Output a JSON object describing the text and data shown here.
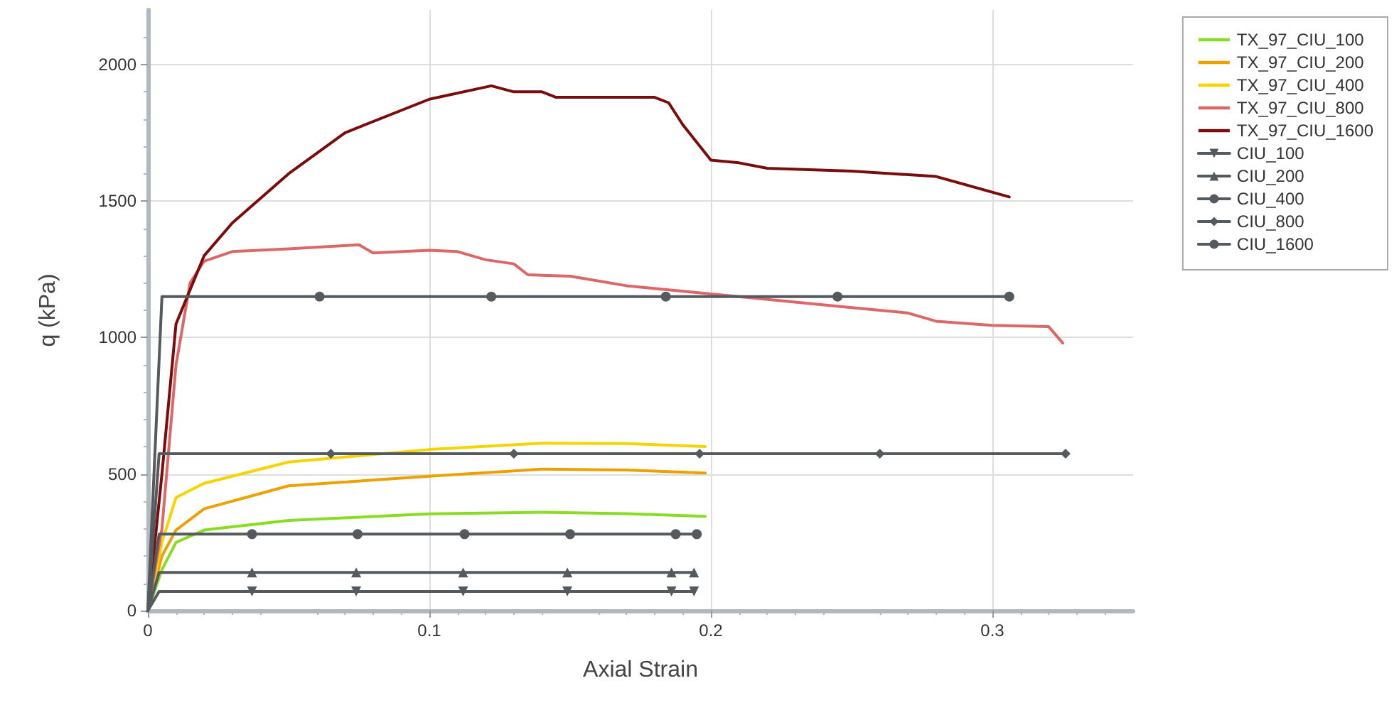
{
  "chart_data": {
    "type": "line",
    "xlabel": "Axial Strain",
    "ylabel": "q (kPa)",
    "xlim": [
      0,
      0.35
    ],
    "xticks": [
      0,
      0.1,
      0.2,
      0.3
    ],
    "ylim": [
      0,
      2200
    ],
    "yticks": [
      0,
      500,
      1000,
      1500,
      2000
    ],
    "grid": true,
    "legend": "top right",
    "line_style": "solid",
    "series": [
      {
        "name": "TX_97_CIU_100",
        "color": "#88dd22",
        "marker": "none",
        "x": [
          0,
          0.005,
          0.01,
          0.02,
          0.05,
          0.1,
          0.14,
          0.17,
          0.198
        ],
        "values": [
          0,
          150,
          250,
          295,
          330,
          354,
          360,
          355,
          345
        ]
      },
      {
        "name": "TX_97_CIU_200",
        "color": "#eea000",
        "marker": "none",
        "x": [
          0,
          0.005,
          0.01,
          0.02,
          0.05,
          0.1,
          0.14,
          0.17,
          0.198
        ],
        "values": [
          0,
          200,
          295,
          373,
          457,
          492,
          518,
          515,
          504
        ]
      },
      {
        "name": "TX_97_CIU_400",
        "color": "#f5d400",
        "marker": "none",
        "x": [
          0,
          0.005,
          0.01,
          0.02,
          0.05,
          0.1,
          0.14,
          0.17,
          0.198
        ],
        "values": [
          0,
          250,
          414,
          466,
          544,
          590,
          613,
          612,
          601
        ]
      },
      {
        "name": "TX_97_CIU_800",
        "color": "#dd6666",
        "marker": "none",
        "x": [
          0,
          0.005,
          0.01,
          0.015,
          0.02,
          0.03,
          0.05,
          0.075,
          0.08,
          0.1,
          0.11,
          0.12,
          0.13,
          0.135,
          0.15,
          0.17,
          0.2,
          0.25,
          0.27,
          0.28,
          0.3,
          0.32,
          0.325
        ],
        "values": [
          0,
          300,
          900,
          1200,
          1280,
          1315,
          1325,
          1340,
          1310,
          1320,
          1315,
          1285,
          1270,
          1230,
          1225,
          1190,
          1160,
          1110,
          1090,
          1060,
          1045,
          1040,
          980
        ]
      },
      {
        "name": "TX_97_CIU_1600",
        "color": "#7a0c0c",
        "marker": "none",
        "x": [
          0,
          0.005,
          0.01,
          0.02,
          0.03,
          0.05,
          0.07,
          0.1,
          0.122,
          0.13,
          0.14,
          0.145,
          0.18,
          0.185,
          0.19,
          0.2,
          0.21,
          0.22,
          0.25,
          0.28,
          0.306
        ],
        "values": [
          0,
          500,
          1050,
          1300,
          1420,
          1600,
          1750,
          1873,
          1922,
          1900,
          1900,
          1880,
          1880,
          1860,
          1780,
          1650,
          1640,
          1620,
          1610,
          1590,
          1515
        ]
      },
      {
        "name": "CIU_100",
        "color": "#555a5f",
        "marker": "triangle-down",
        "x": [
          0,
          0.004,
          0.037,
          0.074,
          0.112,
          0.149,
          0.186,
          0.194
        ],
        "values": [
          0,
          70,
          70,
          70,
          70,
          70,
          70,
          70
        ]
      },
      {
        "name": "CIU_200",
        "color": "#555a5f",
        "marker": "triangle",
        "x": [
          0,
          0.004,
          0.037,
          0.074,
          0.112,
          0.149,
          0.186,
          0.194
        ],
        "values": [
          0,
          140,
          140,
          140,
          140,
          140,
          140,
          140
        ]
      },
      {
        "name": "CIU_400",
        "color": "#555a5f",
        "marker": "circle",
        "x": [
          0,
          0.004,
          0.037,
          0.0745,
          0.1125,
          0.15,
          0.1875,
          0.195
        ],
        "values": [
          0,
          280,
          280,
          280,
          280,
          280,
          280,
          280
        ]
      },
      {
        "name": "CIU_800",
        "color": "#555a5f",
        "marker": "diamond",
        "x": [
          0,
          0.004,
          0.065,
          0.13,
          0.196,
          0.26,
          0.326
        ],
        "values": [
          0,
          575,
          575,
          575,
          575,
          575,
          575
        ]
      },
      {
        "name": "CIU_1600",
        "color": "#555a5f",
        "marker": "circle",
        "x": [
          0,
          0.005,
          0.061,
          0.122,
          0.184,
          0.245,
          0.306
        ],
        "values": [
          0,
          1150,
          1150,
          1150,
          1150,
          1150,
          1150
        ]
      }
    ]
  }
}
